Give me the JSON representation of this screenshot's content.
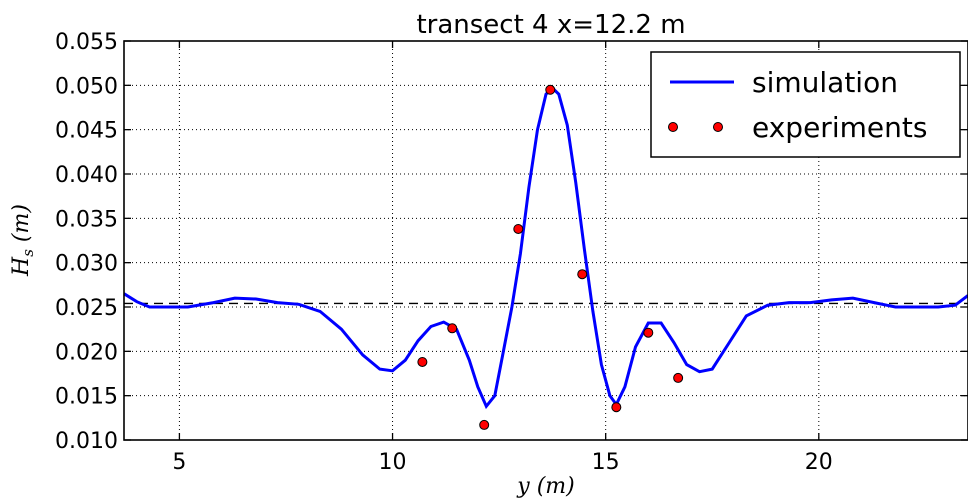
{
  "chart_data": {
    "type": "line",
    "title": "transect 4 x=12.2 m",
    "xlabel": "y (m)",
    "ylabel": "H_s (m)",
    "xlim": [
      3.7,
      23.5
    ],
    "ylim": [
      0.01,
      0.055
    ],
    "xticks": [
      5,
      10,
      15,
      20
    ],
    "xtick_labels": [
      "5",
      "10",
      "15",
      "20"
    ],
    "yticks": [
      0.01,
      0.015,
      0.02,
      0.025,
      0.03,
      0.035,
      0.04,
      0.045,
      0.05,
      0.055
    ],
    "ytick_labels": [
      "0.010",
      "0.015",
      "0.020",
      "0.025",
      "0.030",
      "0.035",
      "0.040",
      "0.045",
      "0.050",
      "0.055"
    ],
    "grid": true,
    "grid_style": "dotted",
    "legend_position": "top-right",
    "reference_line": {
      "y": 0.0254,
      "style": "dashed",
      "color": "#000000"
    },
    "series": [
      {
        "name": "simulation",
        "kind": "line",
        "color": "#0000ff",
        "x": [
          3.7,
          4.0,
          4.3,
          4.7,
          5.2,
          5.8,
          6.3,
          6.8,
          7.3,
          7.8,
          8.3,
          8.8,
          9.3,
          9.7,
          10.0,
          10.3,
          10.6,
          10.9,
          11.2,
          11.5,
          11.8,
          12.0,
          12.2,
          12.4,
          12.6,
          12.8,
          13.0,
          13.2,
          13.4,
          13.6,
          13.75,
          13.9,
          14.1,
          14.3,
          14.5,
          14.7,
          14.9,
          15.1,
          15.25,
          15.45,
          15.7,
          16.0,
          16.3,
          16.6,
          16.9,
          17.2,
          17.5,
          17.9,
          18.3,
          18.8,
          19.3,
          19.8,
          20.3,
          20.8,
          21.3,
          21.8,
          22.3,
          22.8,
          23.2,
          23.5
        ],
        "values": [
          0.0265,
          0.0256,
          0.025,
          0.025,
          0.025,
          0.0255,
          0.026,
          0.0259,
          0.0255,
          0.0253,
          0.0245,
          0.0225,
          0.0196,
          0.018,
          0.0178,
          0.019,
          0.0212,
          0.0228,
          0.0233,
          0.0225,
          0.019,
          0.016,
          0.0138,
          0.015,
          0.02,
          0.025,
          0.031,
          0.0385,
          0.045,
          0.049,
          0.0497,
          0.049,
          0.0455,
          0.039,
          0.0315,
          0.0245,
          0.0185,
          0.015,
          0.014,
          0.016,
          0.0205,
          0.0232,
          0.0232,
          0.021,
          0.0185,
          0.0177,
          0.018,
          0.021,
          0.024,
          0.0252,
          0.0255,
          0.0255,
          0.0258,
          0.026,
          0.0255,
          0.025,
          0.025,
          0.025,
          0.0252,
          0.0263
        ]
      },
      {
        "name": "experiments",
        "kind": "scatter",
        "color": "#ff0000",
        "x": [
          10.7,
          11.4,
          12.15,
          12.95,
          13.7,
          14.45,
          15.25,
          16.0,
          16.7
        ],
        "values": [
          0.0188,
          0.0226,
          0.0117,
          0.0338,
          0.0495,
          0.0287,
          0.0137,
          0.0221,
          0.017
        ]
      }
    ]
  }
}
